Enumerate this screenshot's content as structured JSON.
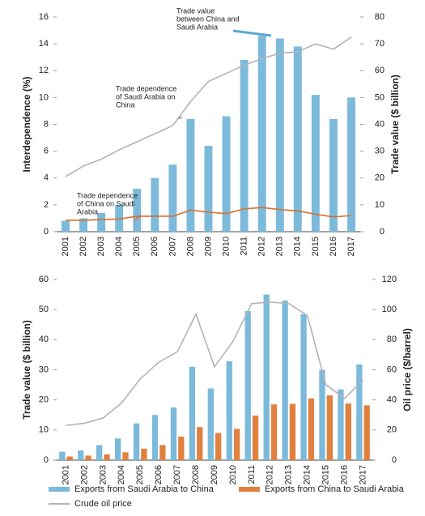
{
  "chart_data": [
    {
      "type": "combo",
      "y_label": "Interdependence (%)",
      "y2_label": "Trade value ($ billion)",
      "categories": [
        "2001",
        "2002",
        "2003",
        "2004",
        "2005",
        "2006",
        "2007",
        "2008",
        "2009",
        "2010",
        "2011",
        "2012",
        "2013",
        "2014",
        "2015",
        "2016",
        "2017"
      ],
      "ylim": [
        0,
        16
      ],
      "yticks": [
        0,
        2,
        4,
        6,
        8,
        10,
        12,
        14,
        16
      ],
      "y2lim": [
        0,
        80
      ],
      "y2ticks": [
        0,
        10,
        20,
        30,
        40,
        50,
        60,
        70,
        80
      ],
      "series": [
        {
          "style": "bar",
          "axis": "y2",
          "color": "#7cbadb",
          "values": [
            4,
            5,
            7,
            10,
            16,
            20,
            25,
            42,
            32,
            43,
            64,
            73,
            72,
            69,
            51,
            42,
            50
          ]
        },
        {
          "style": "line",
          "axis": "y",
          "color": "#b3b3b3",
          "values": [
            4.1,
            4.9,
            5.4,
            6.1,
            6.7,
            7.3,
            7.9,
            9.7,
            11.2,
            11.8,
            12.4,
            12.9,
            13.3,
            13.4,
            14.0,
            13.6,
            14.5
          ]
        },
        {
          "style": "line",
          "axis": "y",
          "color": "#d9702e",
          "values": [
            0.85,
            0.85,
            0.9,
            0.95,
            1.15,
            1.15,
            1.15,
            1.6,
            1.45,
            1.35,
            1.7,
            1.8,
            1.65,
            1.55,
            1.3,
            1.1,
            1.2
          ]
        }
      ],
      "annotations": [
        {
          "lines": [
            "Trade value",
            "between China and",
            "Saudi Arabia"
          ]
        },
        {
          "lines": [
            "Trade dependence",
            "of Saudi Arabia on",
            "China"
          ]
        },
        {
          "lines": [
            "Trade dependence",
            "of China on Saudi",
            "Arabia"
          ]
        }
      ]
    },
    {
      "type": "combo",
      "y_label": "Trade value ($ billion)",
      "y2_label": "Oil price ($/barrel)",
      "categories": [
        "2001",
        "2002",
        "2003",
        "2004",
        "2005",
        "2006",
        "2007",
        "2008",
        "2009",
        "2010",
        "2011",
        "2012",
        "2013",
        "2014",
        "2015",
        "2016",
        "2017"
      ],
      "ylim": [
        0,
        60
      ],
      "yticks": [
        0,
        10,
        20,
        30,
        40,
        50,
        60
      ],
      "y2lim": [
        0,
        120
      ],
      "y2ticks": [
        0,
        20,
        40,
        60,
        80,
        100,
        120
      ],
      "series": [
        {
          "name": "Exports from Saudi Arabia to China",
          "style": "bar",
          "axis": "y",
          "color": "#7cbadb",
          "values": [
            2.8,
            3.2,
            5.0,
            7.2,
            12.2,
            15,
            17.5,
            31,
            23.8,
            32.8,
            49.5,
            55,
            53,
            48.5,
            30,
            23.5,
            31.8
          ]
        },
        {
          "name": "Exports from China to Saudi Arabia",
          "style": "bar",
          "axis": "y",
          "color": "#e0813f",
          "values": [
            1.2,
            1.5,
            1.9,
            2.6,
            3.8,
            5,
            7.8,
            11,
            9,
            10.4,
            14.8,
            18.5,
            18.7,
            20.5,
            21.5,
            18.8,
            18.2
          ]
        },
        {
          "name": "Crude oil price",
          "style": "line",
          "axis": "y2",
          "color": "#b3b3b3",
          "values": [
            23,
            24.5,
            28,
            38,
            54,
            65,
            72,
            97,
            62,
            79,
            104,
            105,
            104,
            96,
            50,
            41,
            53
          ]
        }
      ]
    }
  ]
}
